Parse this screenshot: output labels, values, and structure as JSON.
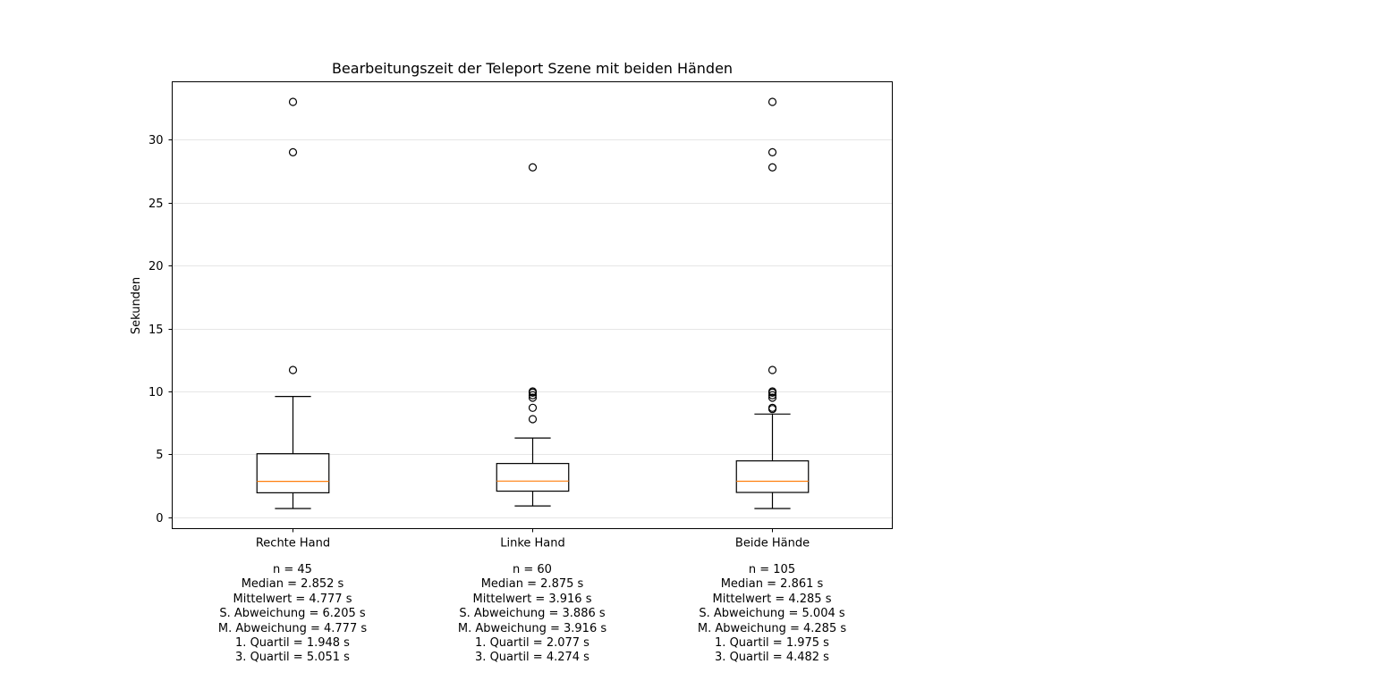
{
  "chart_data": {
    "type": "box",
    "title": "Bearbeitungszeit der Teleport Szene mit beiden Händen",
    "xlabel": "",
    "ylabel": "Sekunden",
    "ylim": [
      -0.9,
      34.6
    ],
    "yticks": [
      0,
      5,
      10,
      15,
      20,
      25,
      30
    ],
    "grid": "horizontal",
    "categories": [
      "Rechte Hand",
      "Linke Hand",
      "Beide Hände"
    ],
    "boxes": [
      {
        "label": "Rechte Hand",
        "whisker_low": 0.7,
        "q1": 1.948,
        "median": 2.852,
        "q3": 5.051,
        "whisker_high": 9.6,
        "outliers": [
          11.7,
          29.0,
          33.0
        ]
      },
      {
        "label": "Linke Hand",
        "whisker_low": 0.9,
        "q1": 2.077,
        "median": 2.875,
        "q3": 4.274,
        "whisker_high": 6.3,
        "outliers": [
          7.8,
          8.7,
          9.5,
          9.7,
          9.9,
          10.0,
          27.8
        ]
      },
      {
        "label": "Beide Hände",
        "whisker_low": 0.7,
        "q1": 1.975,
        "median": 2.861,
        "q3": 4.482,
        "whisker_high": 8.2,
        "outliers": [
          8.6,
          8.7,
          9.5,
          9.7,
          9.9,
          10.0,
          11.7,
          27.8,
          29.0,
          33.0
        ]
      }
    ],
    "colors": {
      "median": "#ff7f0e",
      "box": "#000000",
      "grid": "#e6e6e6"
    }
  },
  "stats": [
    [
      "n = 45",
      "Median = 2.852 s",
      "Mittelwert = 4.777 s",
      "S. Abweichung = 6.205 s",
      "M. Abweichung = 4.777 s",
      "1. Quartil = 1.948 s",
      "3. Quartil = 5.051 s"
    ],
    [
      "n = 60",
      "Median = 2.875 s",
      "Mittelwert = 3.916 s",
      "S. Abweichung = 3.886 s",
      "M. Abweichung = 3.916 s",
      "1. Quartil = 2.077 s",
      "3. Quartil = 4.274 s"
    ],
    [
      "n = 105",
      "Median = 2.861 s",
      "Mittelwert = 4.285 s",
      "S. Abweichung = 5.004 s",
      "M. Abweichung = 4.285 s",
      "1. Quartil = 1.975 s",
      "3. Quartil = 4.482 s"
    ]
  ]
}
